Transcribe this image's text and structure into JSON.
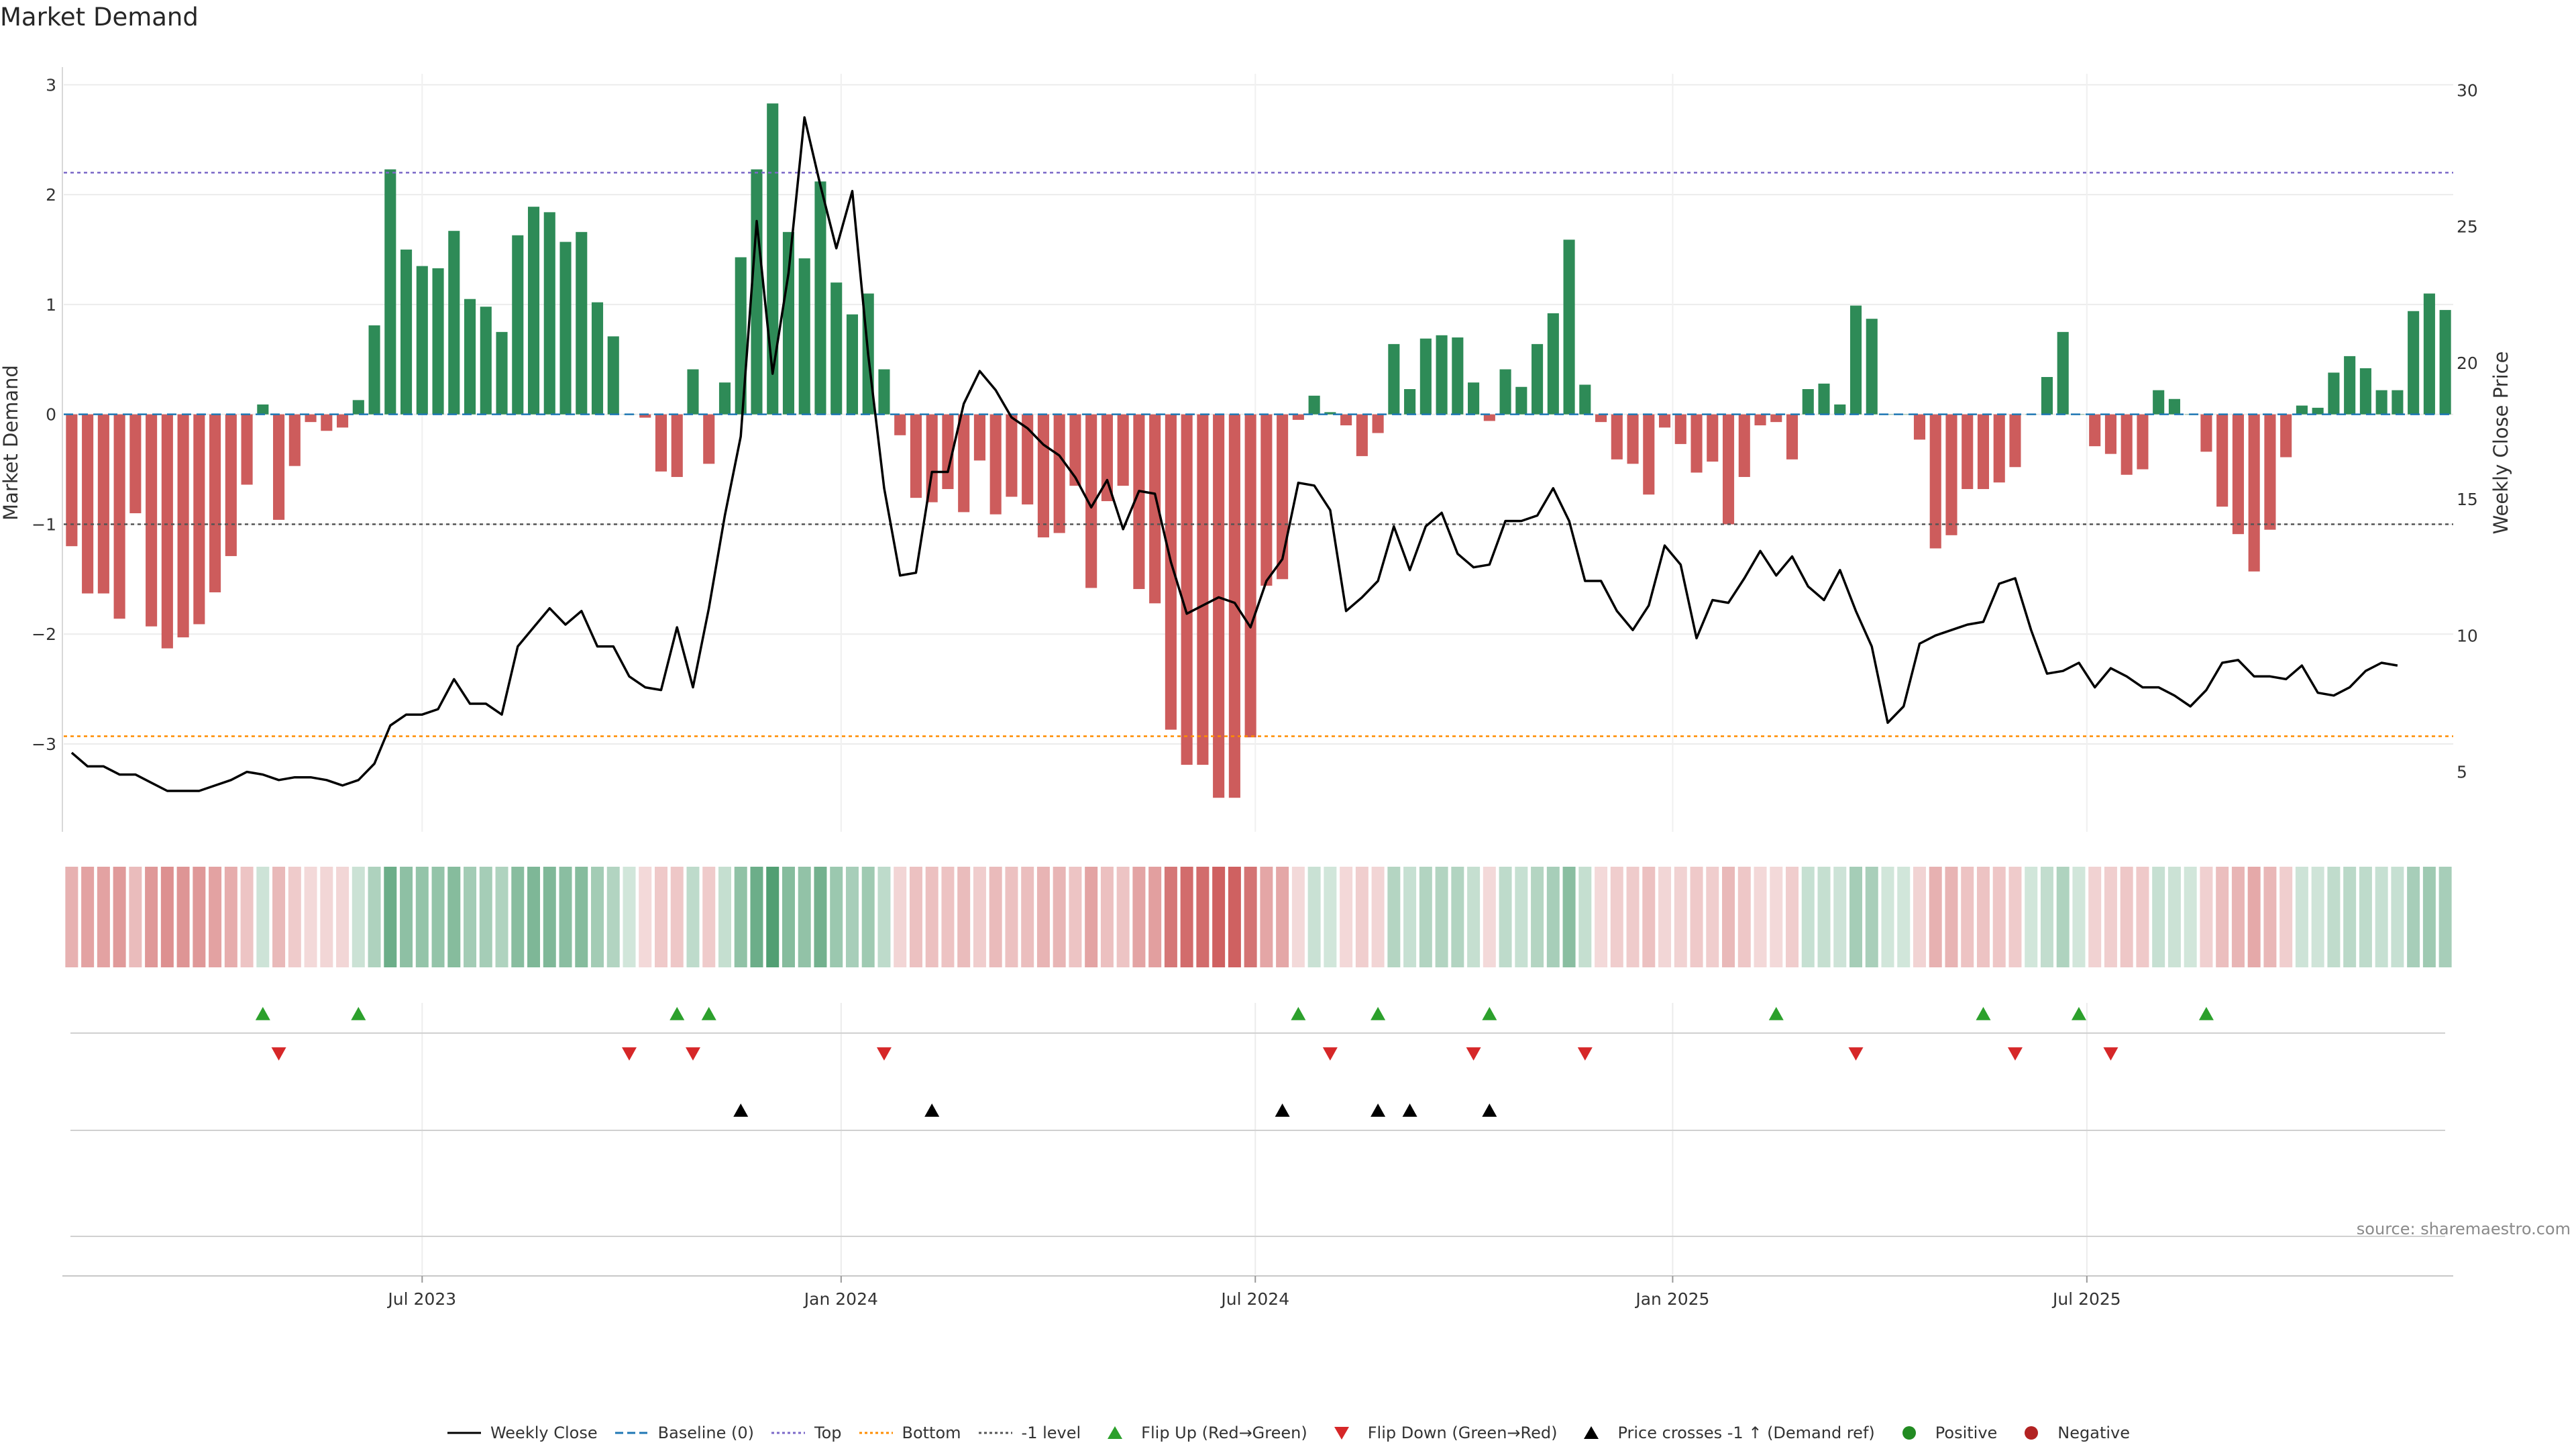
{
  "title": "Market Demand",
  "source": "source: sharemaestro.com",
  "colors": {
    "positive": "#2e8b57",
    "negative": "#cd5c5c",
    "price_line": "#000000",
    "baseline": "#1f77b4",
    "top": "#7b68c8",
    "bottom": "#ff8c00",
    "minus_one": "#555555",
    "flip_up": "#2ca02c",
    "flip_down": "#d62728",
    "cross_up": "#000000",
    "dot_positive": "#228b22",
    "dot_negative": "#b22222"
  },
  "chart_data": {
    "type": "bar",
    "title": "Market Demand",
    "ylabel": "Market Demand",
    "y2label": "Weekly Close Price",
    "ylim": [
      -3.8,
      3.1
    ],
    "y2lim": [
      2.8,
      30.6
    ],
    "yticks": [
      3,
      2,
      1,
      0,
      -1,
      -2,
      -3
    ],
    "ytick_labels": [
      "3",
      "2",
      "1",
      "0",
      "−1",
      "−2",
      "−3"
    ],
    "y2ticks": [
      30,
      25,
      20,
      15,
      10,
      5
    ],
    "y2tick_labels": [
      "30",
      "25",
      "20",
      "15",
      "10",
      "5"
    ],
    "xtick_labels": [
      "Jul 2023",
      "Jan 2024",
      "Jul 2024",
      "Jan 2025",
      "Jul 2025"
    ],
    "xtick_weeks": [
      22.5,
      48.8,
      74.8,
      101,
      127
    ],
    "reference_lines": {
      "top": 2.2,
      "bottom": -2.93,
      "minus_one": -1.0,
      "baseline": 0
    },
    "demand": [
      -1.2,
      -1.63,
      -1.63,
      -1.86,
      -0.9,
      -1.93,
      -2.13,
      -2.03,
      -1.91,
      -1.62,
      -1.29,
      -0.64,
      0.09,
      -0.96,
      -0.47,
      -0.07,
      -0.15,
      -0.12,
      0.13,
      0.81,
      2.23,
      1.5,
      1.35,
      1.33,
      1.67,
      1.05,
      0.98,
      0.75,
      1.63,
      1.89,
      1.84,
      1.57,
      1.66,
      1.02,
      0.71,
      0,
      -0.03,
      -0.52,
      -0.57,
      0.41,
      -0.45,
      0.29,
      1.43,
      2.23,
      2.83,
      1.66,
      1.42,
      2.12,
      1.2,
      0.91,
      1.1,
      0.41,
      -0.19,
      -0.76,
      -0.8,
      -0.68,
      -0.89,
      -0.42,
      -0.91,
      -0.75,
      -0.82,
      -1.12,
      -1.08,
      -0.65,
      -1.58,
      -0.79,
      -0.65,
      -1.59,
      -1.72,
      -2.87,
      -3.19,
      -3.19,
      -3.49,
      -3.49,
      -2.94,
      -1.56,
      -1.5,
      -0.05,
      0.17,
      0.02,
      -0.1,
      -0.38,
      -0.17,
      0.64,
      0.23,
      0.69,
      0.72,
      0.7,
      0.29,
      -0.06,
      0.41,
      0.25,
      0.64,
      0.92,
      1.59,
      0.27,
      -0.07,
      -0.41,
      -0.45,
      -0.73,
      -0.12,
      -0.27,
      -0.53,
      -0.43,
      -1.0,
      -0.57,
      -0.1,
      -0.07,
      -0.41,
      0.23,
      0.28,
      0.09,
      0.99,
      0.87,
      0,
      0,
      -0.23,
      -1.22,
      -1.1,
      -0.68,
      -0.68,
      -0.62,
      -0.48,
      0,
      0.34,
      0.75,
      0,
      -0.29,
      -0.36,
      -0.55,
      -0.5,
      0.22,
      0.14,
      0,
      -0.34,
      -0.84,
      -1.09,
      -1.43,
      -1.05,
      -0.39,
      0.08,
      0.06,
      0.38,
      0.53,
      0.42,
      0.22,
      0.22,
      0.94,
      1.1,
      0.95
    ],
    "weekly_close": [
      5.7,
      5.2,
      5.2,
      4.9,
      4.9,
      4.6,
      4.3,
      4.3,
      4.3,
      4.5,
      4.7,
      5.0,
      4.9,
      4.7,
      4.8,
      4.8,
      4.7,
      4.5,
      4.7,
      5.3,
      6.7,
      7.1,
      7.1,
      7.3,
      8.4,
      7.5,
      7.5,
      7.1,
      9.6,
      10.3,
      11.0,
      10.4,
      10.9,
      9.6,
      9.6,
      8.5,
      8.1,
      8.0,
      10.3,
      8.1,
      11.0,
      14.4,
      17.3,
      25.2,
      19.6,
      23.3,
      29.0,
      26.5,
      24.2,
      26.3,
      20.3,
      15.4,
      12.2,
      12.3,
      16.0,
      16.0,
      18.5,
      19.7,
      19.0,
      18.0,
      17.6,
      17.0,
      16.6,
      15.8,
      14.7,
      15.7,
      13.9,
      15.3,
      15.2,
      12.7,
      10.8,
      11.1,
      11.4,
      11.2,
      10.3,
      12.0,
      12.8,
      15.6,
      15.5,
      14.6,
      10.9,
      11.4,
      12.0,
      14.0,
      12.4,
      14.0,
      14.5,
      13.0,
      12.5,
      12.6,
      14.2,
      14.2,
      14.4,
      15.4,
      14.2,
      12.0,
      12.0,
      10.9,
      10.2,
      11.1,
      13.3,
      12.6,
      9.9,
      11.3,
      11.2,
      12.1,
      13.1,
      12.2,
      12.9,
      11.8,
      11.3,
      12.4,
      10.9,
      9.6,
      6.8,
      7.4,
      9.7,
      10.0,
      10.2,
      10.4,
      10.5,
      11.9,
      12.1,
      10.2,
      8.6,
      8.7,
      9.0,
      8.1,
      8.8,
      8.5,
      8.1,
      8.1,
      7.8,
      7.4,
      8.0,
      9.0,
      9.1,
      8.5,
      8.5,
      8.4,
      8.9,
      7.9,
      7.8,
      8.1,
      8.7,
      9.0,
      8.9
    ],
    "flip_up_weeks": [
      12,
      18,
      38,
      40,
      77,
      82,
      89,
      107,
      120,
      126,
      134
    ],
    "flip_down_weeks": [
      13,
      35,
      39,
      51,
      79,
      88,
      95,
      112,
      122,
      128
    ],
    "price_cross_weeks": [
      42,
      54,
      76,
      82,
      84,
      89
    ],
    "legend": [
      {
        "label": "Weekly Close",
        "symbol": "line",
        "color": "#000000"
      },
      {
        "label": "Baseline (0)",
        "symbol": "dash",
        "color": "#1f77b4"
      },
      {
        "label": "Top",
        "symbol": "dot",
        "color": "#7b68c8"
      },
      {
        "label": "Bottom",
        "symbol": "dot",
        "color": "#ff8c00"
      },
      {
        "label": "-1 level",
        "symbol": "dot",
        "color": "#555555"
      },
      {
        "label": "Flip Up (Red→Green)",
        "symbol": "tri-up",
        "color": "#2ca02c"
      },
      {
        "label": "Flip Down (Green→Red)",
        "symbol": "tri-down",
        "color": "#d62728"
      },
      {
        "label": "Price crosses -1 ↑ (Demand ref)",
        "symbol": "tri-up",
        "color": "#000000"
      },
      {
        "label": "Positive",
        "symbol": "circle",
        "color": "#228b22"
      },
      {
        "label": "Negative",
        "symbol": "circle",
        "color": "#b22222"
      }
    ]
  }
}
